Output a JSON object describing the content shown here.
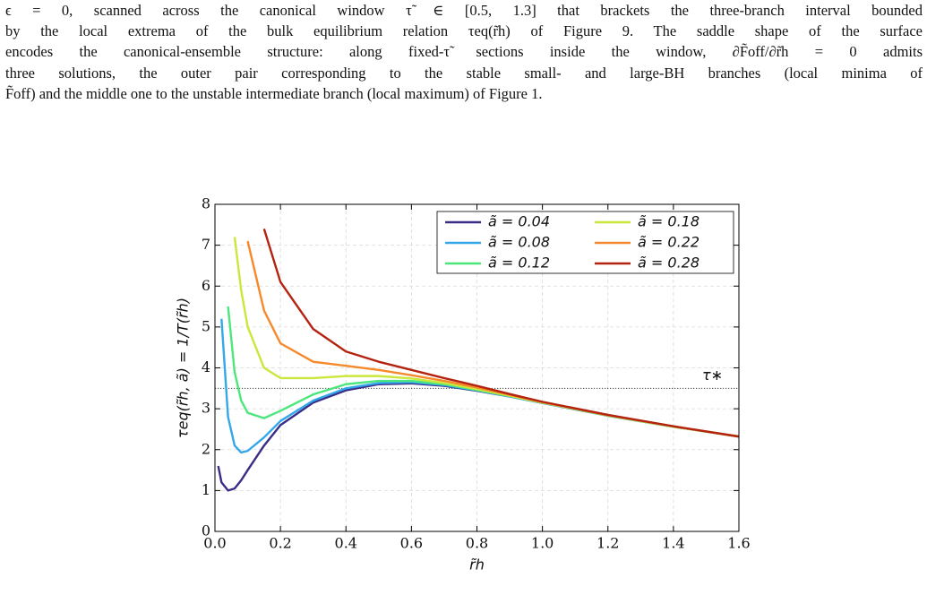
{
  "text": {
    "lines": [
      "ϵ = 0, scanned across the canonical window τ̃ ∈ [0.5, 1.3] that brackets the three-branch interval bounded",
      "by the local extrema of the bulk equilibrium relation τeq(r̃h) of Figure 9. The saddle shape of the surface",
      "encodes the canonical-ensemble structure: along fixed-τ̃ sections inside the window, ∂F̃off/∂r̃h = 0 admits",
      "three solutions, the outer pair corresponding to the stable small- and large-BH branches (local minima of",
      "F̃off) and the middle one to the unstable intermediate branch (local maximum) of Figure 1."
    ]
  },
  "chart_data": {
    "type": "line",
    "x_label": "r̃h",
    "y_label": "τeq(r̃h, ã) = 1/T(r̃h)",
    "x": [
      0.01,
      0.02,
      0.04,
      0.06,
      0.08,
      0.1,
      0.15,
      0.2,
      0.3,
      0.4,
      0.5,
      0.6,
      0.7,
      0.8,
      0.9,
      1.0,
      1.2,
      1.4,
      1.6
    ],
    "series": [
      {
        "name": "ã = 0.04",
        "color": "#3a2d88",
        "values": [
          1.6,
          1.2,
          1.0,
          1.05,
          1.25,
          1.5,
          2.1,
          2.6,
          3.15,
          3.45,
          3.6,
          3.62,
          3.56,
          3.44,
          3.3,
          3.14,
          2.83,
          2.56,
          2.32
        ]
      },
      {
        "name": "ã = 0.08",
        "color": "#33a7ea",
        "values": [
          null,
          5.2,
          2.8,
          2.1,
          1.93,
          1.97,
          2.3,
          2.7,
          3.2,
          3.5,
          3.63,
          3.65,
          3.58,
          3.45,
          3.3,
          3.14,
          2.83,
          2.56,
          2.32
        ]
      },
      {
        "name": "ã = 0.12",
        "color": "#4be77c",
        "values": [
          null,
          null,
          5.5,
          3.9,
          3.2,
          2.9,
          2.77,
          2.95,
          3.35,
          3.6,
          3.68,
          3.68,
          3.6,
          3.46,
          3.31,
          3.15,
          2.83,
          2.56,
          2.32
        ]
      },
      {
        "name": "ã = 0.18",
        "color": "#c9e83b",
        "values": [
          null,
          null,
          null,
          7.2,
          5.9,
          5.0,
          4.0,
          3.75,
          3.75,
          3.8,
          3.8,
          3.74,
          3.63,
          3.48,
          3.32,
          3.15,
          2.84,
          2.56,
          2.32
        ]
      },
      {
        "name": "ã = 0.22",
        "color": "#f5892b",
        "values": [
          null,
          null,
          null,
          null,
          null,
          7.1,
          5.4,
          4.6,
          4.15,
          4.05,
          3.95,
          3.82,
          3.68,
          3.52,
          3.34,
          3.16,
          2.84,
          2.57,
          2.32
        ]
      },
      {
        "name": "ã = 0.28",
        "color": "#b3230f",
        "values": [
          null,
          null,
          null,
          null,
          null,
          null,
          7.4,
          6.1,
          4.95,
          4.4,
          4.15,
          3.95,
          3.75,
          3.56,
          3.36,
          3.17,
          2.85,
          2.57,
          2.32
        ]
      }
    ],
    "xlim": [
      0,
      1.6
    ],
    "ylim": [
      0,
      8
    ],
    "xticks": [
      {
        "value": 0,
        "label": "0.0"
      },
      0.2,
      0.4,
      0.6,
      0.8,
      {
        "value": 1,
        "label": "1.0"
      },
      1.2,
      1.4,
      1.6
    ],
    "yticks": [
      0,
      1,
      2,
      3,
      4,
      5,
      6,
      7,
      8
    ],
    "grid": true,
    "legend": "upper right",
    "annotations": [
      {
        "label": "τ∗",
        "value": 3.5
      }
    ]
  }
}
